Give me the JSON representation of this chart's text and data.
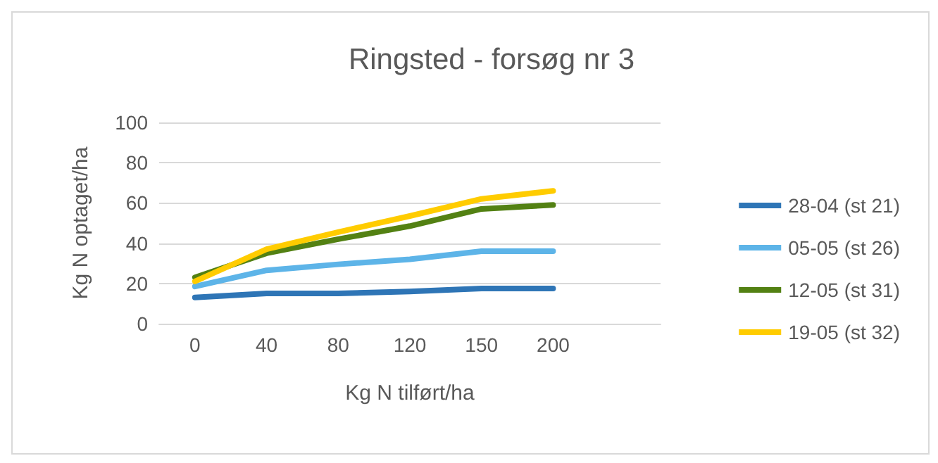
{
  "chart_data": {
    "type": "line",
    "title": "Ringsted - forsøg nr 3",
    "xlabel": "Kg N tilført/ha",
    "ylabel": "Kg N optaget/ha",
    "categories": [
      "0",
      "40",
      "80",
      "120",
      "150",
      "200",
      null
    ],
    "series": [
      {
        "name": "28-04 (st 21)",
        "color": "#2e75b6",
        "values": [
          13,
          15,
          15,
          16,
          17.5,
          17.5,
          null
        ]
      },
      {
        "name": "05-05 (st 26)",
        "color": "#5db4e8",
        "values": [
          18.5,
          26.5,
          29.5,
          32,
          36,
          36,
          null
        ]
      },
      {
        "name": "12-05 (st 31)",
        "color": "#538113",
        "values": [
          23,
          35,
          42,
          48.5,
          57,
          59,
          null
        ]
      },
      {
        "name": "19-05 (st 32)",
        "color": "#ffcc00",
        "values": [
          21,
          37,
          45.5,
          53.5,
          62,
          66,
          null
        ]
      }
    ],
    "ylim": [
      0,
      100
    ],
    "yticks": [
      0,
      20,
      40,
      60,
      80,
      100
    ],
    "grid": "y",
    "legend": "right",
    "marker": "none",
    "line_style": "solid"
  }
}
